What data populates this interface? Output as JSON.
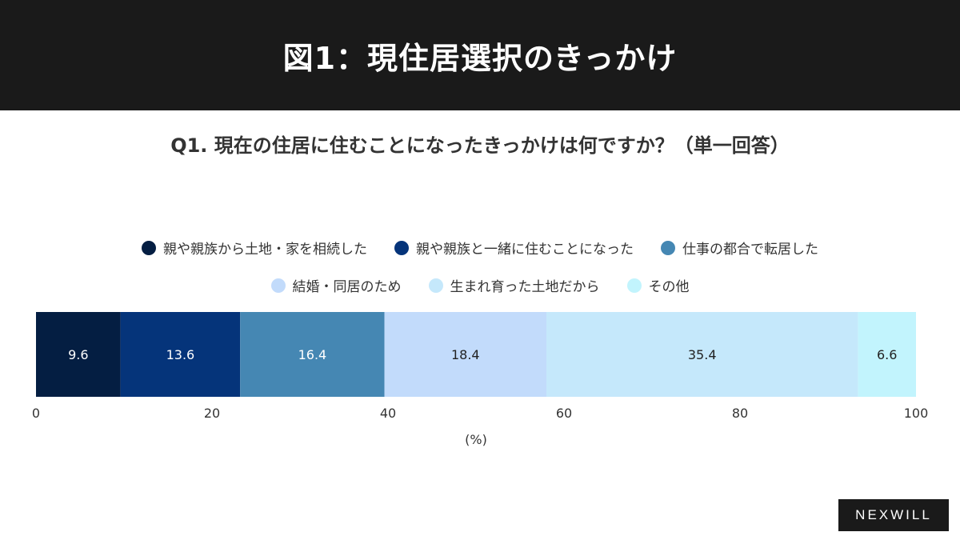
{
  "header": {
    "title": "図1：現住居選択のきっかけ"
  },
  "question": "Q1. 現在の住居に住むことになったきっかけは何ですか？（単一回答）",
  "brand": "NEXWILL",
  "chart_data": {
    "type": "bar",
    "orientation": "horizontal-stacked",
    "xlim": [
      0,
      100
    ],
    "xticks": [
      "0",
      "20",
      "40",
      "60",
      "80",
      "100"
    ],
    "xlabel": "(%)",
    "legend_position": "top",
    "grid": false,
    "series": [
      {
        "name": "親や親族から土地・家を相続した",
        "value": 9.6,
        "color": "#041e42",
        "label_color": "#ffffff"
      },
      {
        "name": "親や親族と一緒に住むことになった",
        "value": 13.6,
        "color": "#05347a",
        "label_color": "#ffffff"
      },
      {
        "name": "仕事の都合で転居した",
        "value": 16.4,
        "color": "#4587b3",
        "label_color": "#ffffff"
      },
      {
        "name": "結婚・同居のため",
        "value": 18.4,
        "color": "#c2dbfb",
        "label_color": "#222222"
      },
      {
        "name": "生まれ育った土地だから",
        "value": 35.4,
        "color": "#c5e8fb",
        "label_color": "#222222"
      },
      {
        "name": "その他",
        "value": 6.6,
        "color": "#c2f4fd",
        "label_color": "#222222"
      }
    ]
  }
}
